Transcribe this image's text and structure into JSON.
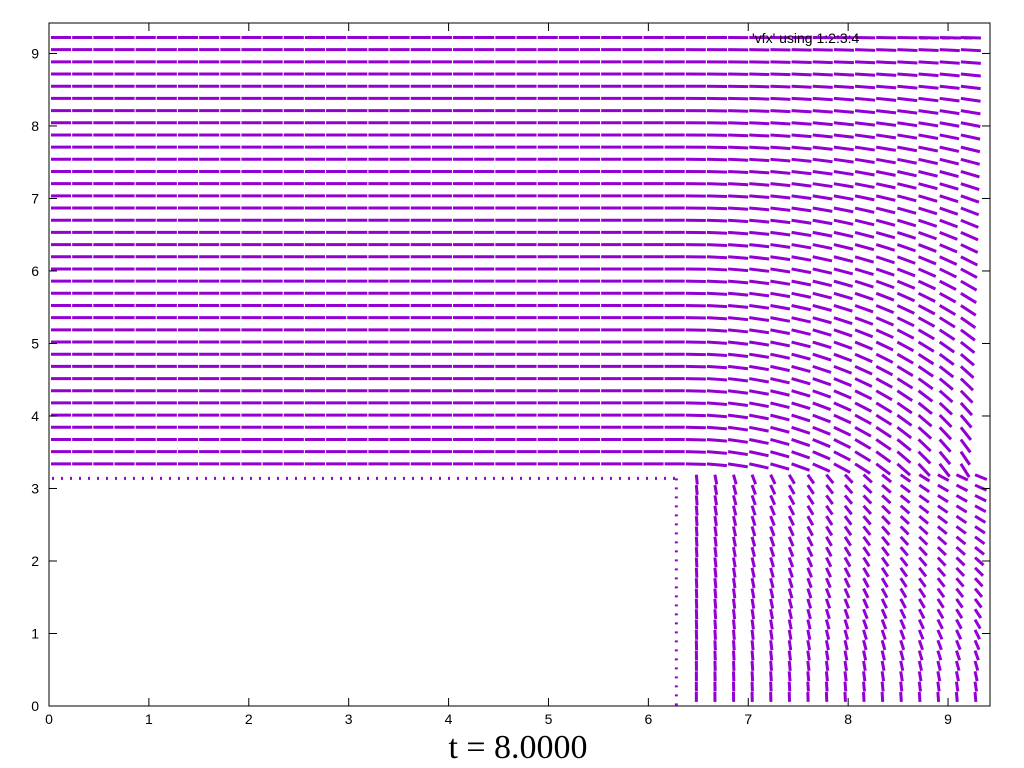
{
  "chart_data": {
    "type": "vector-field",
    "xlim": [
      0,
      9.42
    ],
    "ylim": [
      0,
      9.42
    ],
    "x_ticks": [
      "0",
      "1",
      "2",
      "3",
      "4",
      "5",
      "6",
      "7",
      "8",
      "9"
    ],
    "y_ticks": [
      "0",
      "1",
      "2",
      "3",
      "4",
      "5",
      "6",
      "7",
      "8",
      "9"
    ],
    "legend": "'vfx' using 1:2:3:4",
    "time_label": "t = 8.0000",
    "grid": false,
    "series_color": "#9400d3",
    "obstacle": {
      "x": [
        0,
        6.28
      ],
      "y": [
        0,
        3.14
      ]
    },
    "field_description": "Uniform rightward flow above y=3.14; flow turns downward in region x>6.28, y<3.14"
  }
}
